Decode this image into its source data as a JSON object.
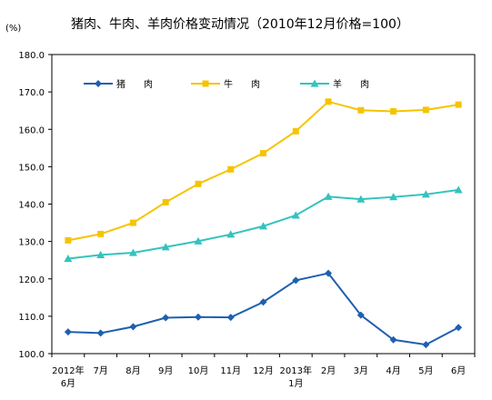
{
  "chart_data": {
    "type": "line",
    "title": "猪肉、牛肉、羊肉价格变动情况（2010年12月价格=100）",
    "unit": "(%)",
    "ylim": [
      100,
      180
    ],
    "yticks": [
      "100.0",
      "110.0",
      "120.0",
      "130.0",
      "140.0",
      "150.0",
      "160.0",
      "170.0",
      "180.0"
    ],
    "categories": [
      "2012年\n6月",
      "7月",
      "8月",
      "9月",
      "10月",
      "11月",
      "12月",
      "2013年\n1月",
      "2月",
      "3月",
      "4月",
      "5月",
      "6月"
    ],
    "series": [
      {
        "name": "猪　　肉",
        "color": "#1f5fb0",
        "marker": "diamond",
        "values": [
          105.8,
          105.5,
          107.2,
          109.6,
          109.8,
          109.7,
          113.8,
          119.6,
          121.5,
          110.3,
          103.7,
          102.4,
          107.0
        ]
      },
      {
        "name": "牛　　肉",
        "color": "#f5c400",
        "marker": "square",
        "values": [
          130.3,
          132.0,
          135.0,
          140.5,
          145.4,
          149.3,
          153.6,
          159.5,
          167.4,
          165.1,
          164.8,
          165.2,
          166.6
        ]
      },
      {
        "name": "羊　　肉",
        "color": "#33c3bf",
        "marker": "triangle",
        "values": [
          125.4,
          126.4,
          127.0,
          128.5,
          130.1,
          131.9,
          134.1,
          137.0,
          142.0,
          141.3,
          141.9,
          142.6,
          143.8
        ]
      }
    ],
    "grid": false,
    "legend": "top-left inside plot"
  }
}
